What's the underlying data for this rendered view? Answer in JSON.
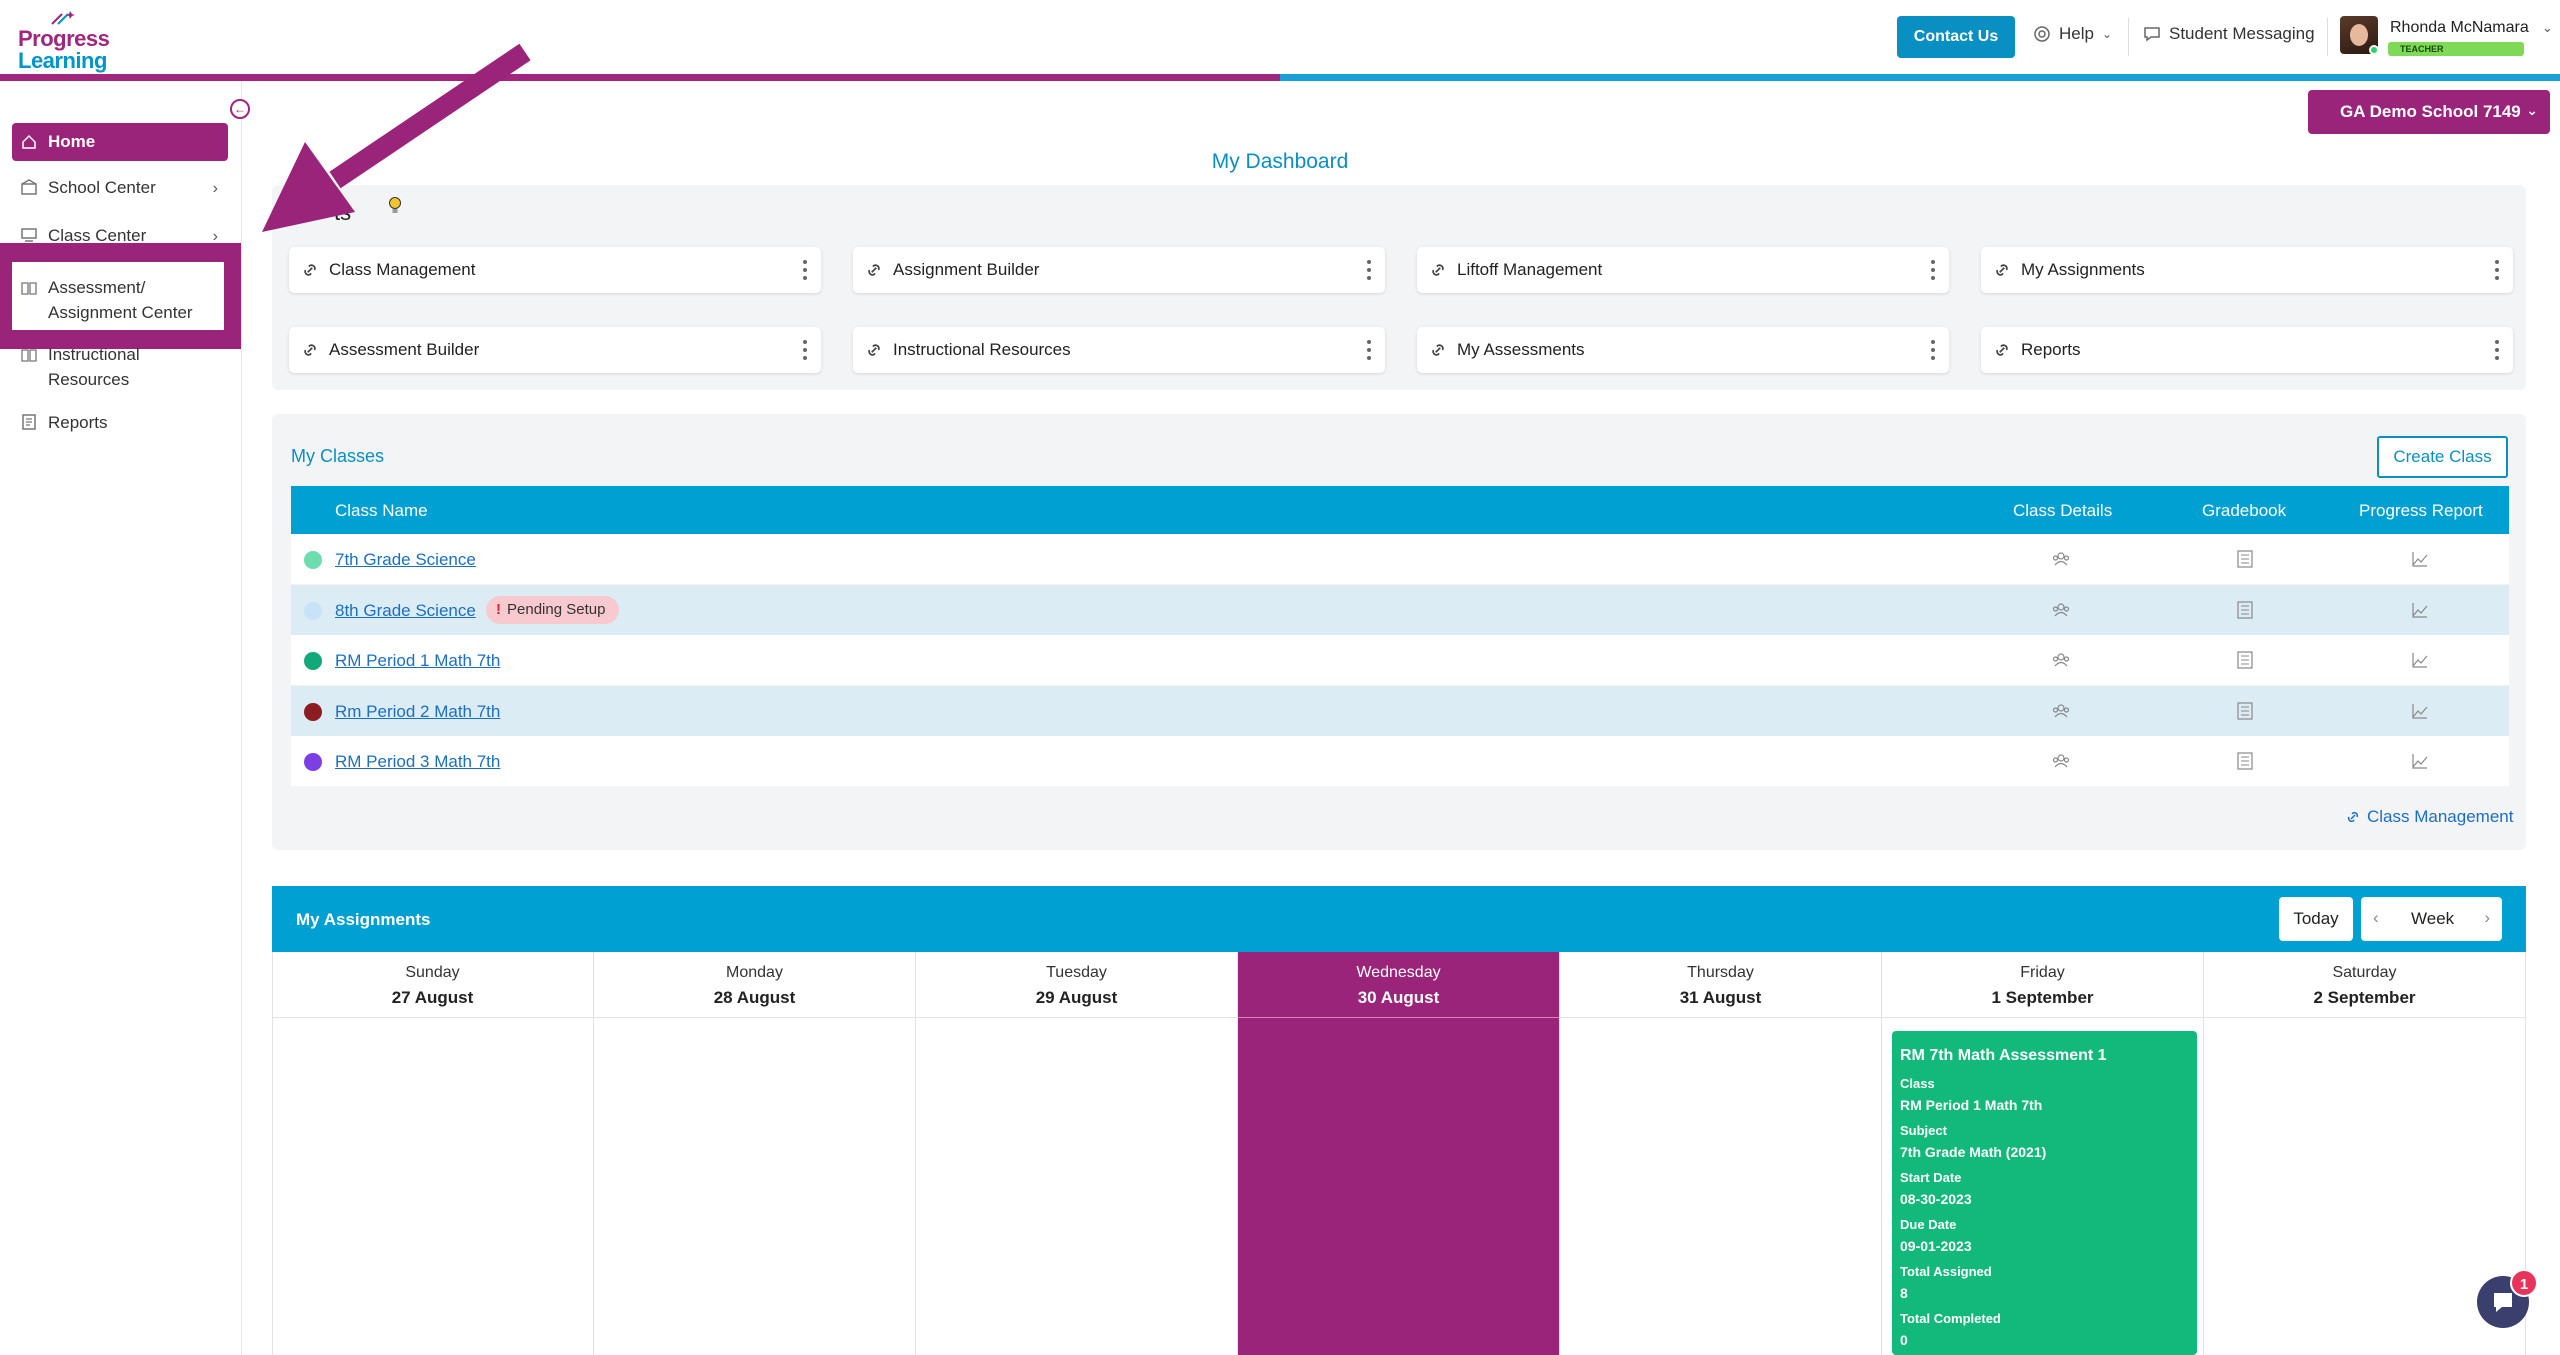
{
  "header": {
    "logo_line1": "Progress",
    "logo_line2": "Learning",
    "contact_label": "Contact Us",
    "help_label": "Help",
    "messaging_label": "Student Messaging",
    "user_name": "Rhonda McNamara",
    "user_role": "TEACHER"
  },
  "sidebar": {
    "items": [
      {
        "label": "Home",
        "icon": "home-icon"
      },
      {
        "label": "School Center",
        "icon": "school-icon"
      },
      {
        "label": "Class Center",
        "icon": "class-icon"
      },
      {
        "label1": "Assessment/",
        "label2": "Assignment Center",
        "icon": "book-icon"
      },
      {
        "label1": "Instructional",
        "label2": "Resources",
        "icon": "resources-icon"
      },
      {
        "label": "Reports",
        "icon": "reports-icon"
      }
    ]
  },
  "school_selector": "GA Demo School 7149",
  "dashboard_title": "My Dashboard",
  "shortcuts": {
    "title": "ts",
    "items": [
      "Class Management",
      "Assignment Builder",
      "Liftoff Management",
      "My Assignments",
      "Assessment Builder",
      "Instructional Resources",
      "My Assessments",
      "Reports"
    ]
  },
  "classes": {
    "title": "My Classes",
    "create_label": "Create Class",
    "columns": [
      "Class Name",
      "Class Details",
      "Gradebook",
      "Progress Report"
    ],
    "rows": [
      {
        "name": "7th Grade Science",
        "color": "#6fdcae"
      },
      {
        "name": "8th Grade Science",
        "color": "#c8e2f8",
        "badge": "Pending Setup"
      },
      {
        "name": "RM Period 1 Math 7th",
        "color": "#12a87a"
      },
      {
        "name": "Rm Period 2 Math 7th",
        "color": "#8a1c22"
      },
      {
        "name": "RM Period 3 Math 7th",
        "color": "#7b3fe4"
      }
    ],
    "footer_link": "Class Management"
  },
  "assignments": {
    "title": "My Assignments",
    "today_label": "Today",
    "view_label": "Week",
    "days": [
      {
        "name": "Sunday",
        "date": "27 August"
      },
      {
        "name": "Monday",
        "date": "28 August"
      },
      {
        "name": "Tuesday",
        "date": "29 August"
      },
      {
        "name": "Wednesday",
        "date": "30 August"
      },
      {
        "name": "Thursday",
        "date": "31 August"
      },
      {
        "name": "Friday",
        "date": "1 September"
      },
      {
        "name": "Saturday",
        "date": "2 September"
      }
    ],
    "event": {
      "title": "RM 7th Math Assessment 1",
      "class_label": "Class",
      "class_value": "RM Period 1 Math 7th",
      "subject_label": "Subject",
      "subject_value": "7th Grade Math (2021)",
      "start_label": "Start Date",
      "start_value": "08-30-2023",
      "due_label": "Due Date",
      "due_value": "09-01-2023",
      "assigned_label": "Total Assigned",
      "assigned_value": "8",
      "completed_label": "Total Completed",
      "completed_value": "0"
    }
  },
  "chat_badge": "1",
  "colors": {
    "brand_purple": "#9a2479",
    "brand_blue": "#00a0d2",
    "event_green": "#12b97a"
  }
}
